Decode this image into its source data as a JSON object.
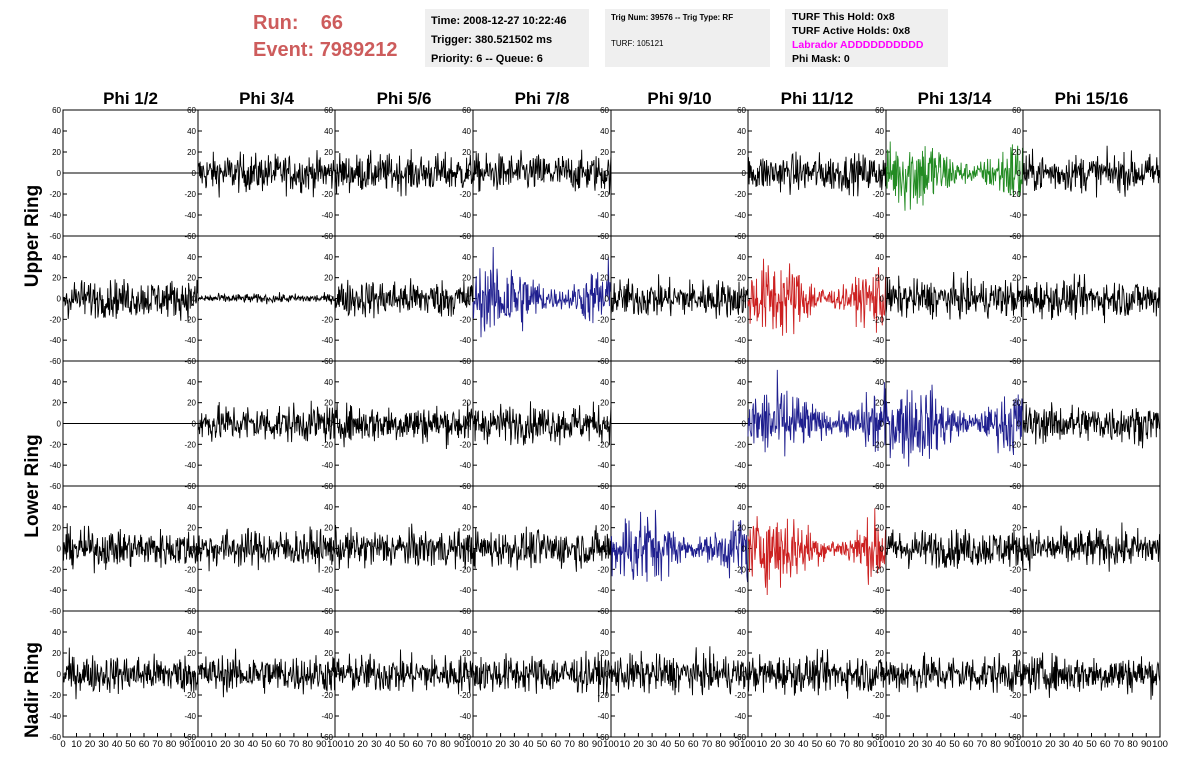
{
  "header": {
    "run_label": "Run:",
    "run_value": "66",
    "event_label": "Event:",
    "event_value": "7989212",
    "run_color": "#cd5c5c"
  },
  "info_box_time": {
    "time": "Time: 2008-12-27 10:22:46",
    "trigger": "Trigger: 380.521502 ms",
    "priority": "Priority: 6 -- Queue: 6"
  },
  "info_box_trig": {
    "trig": "Trig Num: 39576 -- Trig Type: RF",
    "turf": "TURF: 105121"
  },
  "info_box_turf": {
    "this_hold": "TURF This Hold: 0x8",
    "active_holds": "TURF Active Holds: 0x8",
    "labrador": "Labrador ADDDDDDDDDD",
    "labrador_color": "#ff00ff",
    "phi_mask": "Phi Mask: 0"
  },
  "columns": [
    "Phi 1/2",
    "Phi 3/4",
    "Phi 5/6",
    "Phi 7/8",
    "Phi 9/10",
    "Phi 11/12",
    "Phi 13/14",
    "Phi 15/16"
  ],
  "ring_labels": [
    {
      "name": "ring-label-upper",
      "text": "Upper Ring"
    },
    {
      "name": "ring-label-lower",
      "text": "Lower Ring"
    },
    {
      "name": "ring-label-nadir",
      "text": "Nadir Ring"
    }
  ],
  "chart_data": {
    "type": "line",
    "description_axes": "5 rows x 8 columns of waveform panels",
    "ylim": [
      -60,
      60
    ],
    "yticks": [
      "60",
      "40",
      "20",
      "0",
      "-20",
      "-40",
      "-60"
    ],
    "xlim": [
      0,
      100
    ],
    "xticks": [
      "0",
      "10",
      "20",
      "30",
      "40",
      "50",
      "60",
      "70",
      "80",
      "90",
      "100"
    ],
    "colors": {
      "black": "#000000",
      "green": "#228b22",
      "blue": "#1f1f8f",
      "red": "#cc2020"
    },
    "panels": [
      [
        "flat",
        "black",
        "black",
        "black",
        "flat",
        "black",
        "green",
        "black"
      ],
      [
        "black",
        "small",
        "black",
        "blue",
        "black",
        "red",
        "black",
        "black"
      ],
      [
        "flat",
        "black",
        "black",
        "black",
        "flat",
        "blue",
        "blue",
        "black"
      ],
      [
        "black",
        "black",
        "black",
        "black",
        "blue",
        "red",
        "black",
        "black"
      ],
      [
        "black",
        "black",
        "black",
        "black",
        "black",
        "black",
        "black",
        "black"
      ]
    ]
  }
}
